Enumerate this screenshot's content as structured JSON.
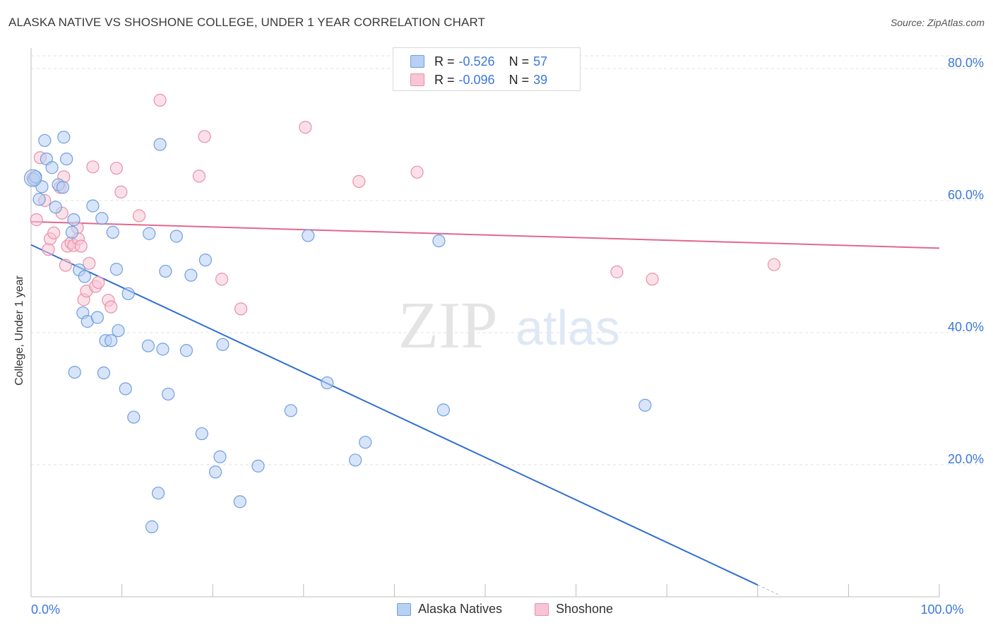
{
  "header": {
    "title": "ALASKA NATIVE VS SHOSHONE COLLEGE, UNDER 1 YEAR CORRELATION CHART",
    "source": "Source: ZipAtlas.com"
  },
  "watermark": {
    "zip": "ZIP",
    "atlas": "atlas"
  },
  "legend": {
    "r_label": "R =",
    "n_label": "N =",
    "rows": [
      {
        "r": "-0.526",
        "n": "57"
      },
      {
        "r": "-0.096",
        "n": "39"
      }
    ]
  },
  "bottom_legend": [
    {
      "label": "Alaska Natives"
    },
    {
      "label": "Shoshone"
    }
  ],
  "colors": {
    "blue_fill": "#b8d0f2",
    "blue_stroke": "#6f9fe0",
    "blue_line": "#2f6fce",
    "pink_fill": "#f7c6d5",
    "pink_stroke": "#e890ac",
    "pink_line": "#e06890",
    "tick_label": "#3b78d8",
    "grid": "#e2e2e2"
  },
  "chart_data": {
    "type": "scatter",
    "title": "ALASKA NATIVE VS SHOSHONE COLLEGE, UNDER 1 YEAR CORRELATION CHART",
    "xlabel": "",
    "ylabel": "College, Under 1 year",
    "xlim": [
      0,
      100
    ],
    "ylim": [
      0,
      80
    ],
    "x_tick_labels": [
      {
        "value": 0,
        "label": "0.0%"
      },
      {
        "value": 100,
        "label": "100.0%"
      }
    ],
    "x_minor_ticks": [
      0,
      10,
      20,
      30,
      40,
      50,
      60,
      70,
      80,
      90,
      100
    ],
    "y_ticks": [
      {
        "value": 20,
        "label": "20.0%"
      },
      {
        "value": 40,
        "label": "40.0%"
      },
      {
        "value": 60,
        "label": "60.0%"
      },
      {
        "value": 80,
        "label": "80.0%"
      }
    ],
    "series": [
      {
        "name": "Alaska Natives",
        "color": "blue",
        "r": -0.526,
        "n": 57,
        "trend": {
          "x0": 0,
          "y0": 53.3,
          "x1": 80,
          "y1": 1.8,
          "dash_to_x": 82.5
        },
        "points": [
          [
            0.3,
            63.2
          ],
          [
            0.5,
            63.6
          ],
          [
            0.9,
            60.2
          ],
          [
            1.2,
            62.1
          ],
          [
            1.5,
            69.1
          ],
          [
            1.7,
            66.3
          ],
          [
            2.3,
            65.0
          ],
          [
            2.7,
            59.0
          ],
          [
            3.0,
            62.4
          ],
          [
            3.5,
            62.0
          ],
          [
            3.6,
            69.6
          ],
          [
            3.9,
            66.3
          ],
          [
            4.5,
            55.2
          ],
          [
            4.7,
            57.1
          ],
          [
            5.3,
            49.5
          ],
          [
            5.7,
            43.0
          ],
          [
            5.9,
            48.5
          ],
          [
            6.2,
            41.7
          ],
          [
            6.8,
            59.2
          ],
          [
            7.3,
            42.3
          ],
          [
            7.8,
            57.3
          ],
          [
            8.2,
            38.8
          ],
          [
            8.8,
            38.8
          ],
          [
            9.0,
            55.2
          ],
          [
            9.4,
            49.6
          ],
          [
            9.6,
            40.3
          ],
          [
            10.7,
            45.9
          ],
          [
            10.4,
            31.5
          ],
          [
            11.3,
            27.2
          ],
          [
            12.9,
            38.0
          ],
          [
            13.0,
            55.0
          ],
          [
            14.2,
            68.5
          ],
          [
            14.5,
            37.5
          ],
          [
            14.8,
            49.3
          ],
          [
            15.1,
            30.7
          ],
          [
            16.0,
            54.6
          ],
          [
            17.1,
            37.3
          ],
          [
            17.6,
            48.7
          ],
          [
            18.8,
            24.7
          ],
          [
            19.2,
            51.0
          ],
          [
            20.3,
            18.9
          ],
          [
            20.8,
            21.2
          ],
          [
            21.1,
            38.2
          ],
          [
            23.0,
            14.4
          ],
          [
            25.0,
            19.8
          ],
          [
            28.6,
            28.2
          ],
          [
            30.5,
            54.7
          ],
          [
            32.6,
            32.4
          ],
          [
            35.7,
            20.7
          ],
          [
            36.8,
            23.4
          ],
          [
            44.9,
            53.9
          ],
          [
            45.4,
            28.3
          ],
          [
            67.6,
            29.0
          ],
          [
            14.0,
            15.7
          ],
          [
            13.3,
            10.6
          ],
          [
            4.8,
            34.0
          ],
          [
            8.0,
            33.9
          ]
        ]
      },
      {
        "name": "Shoshone",
        "color": "pink",
        "r": -0.096,
        "n": 39,
        "trend": {
          "x0": 0,
          "y0": 56.8,
          "x1": 100,
          "y1": 52.8
        },
        "points": [
          [
            0.2,
            63.4
          ],
          [
            0.6,
            57.1
          ],
          [
            1.0,
            66.5
          ],
          [
            1.5,
            60.0
          ],
          [
            1.9,
            52.6
          ],
          [
            2.1,
            54.2
          ],
          [
            2.5,
            55.1
          ],
          [
            3.2,
            62.0
          ],
          [
            3.4,
            58.1
          ],
          [
            3.6,
            63.6
          ],
          [
            3.8,
            50.2
          ],
          [
            4.0,
            53.1
          ],
          [
            4.4,
            53.6
          ],
          [
            4.7,
            53.2
          ],
          [
            5.1,
            55.9
          ],
          [
            5.2,
            54.2
          ],
          [
            5.5,
            53.1
          ],
          [
            5.8,
            45.0
          ],
          [
            6.1,
            46.3
          ],
          [
            6.4,
            50.5
          ],
          [
            6.8,
            65.1
          ],
          [
            7.1,
            47.0
          ],
          [
            7.4,
            47.6
          ],
          [
            8.5,
            44.9
          ],
          [
            8.8,
            43.9
          ],
          [
            9.4,
            64.9
          ],
          [
            9.9,
            61.3
          ],
          [
            11.9,
            57.7
          ],
          [
            14.2,
            75.2
          ],
          [
            18.5,
            63.7
          ],
          [
            19.1,
            69.7
          ],
          [
            21.0,
            48.1
          ],
          [
            23.1,
            43.6
          ],
          [
            30.2,
            71.1
          ],
          [
            36.1,
            62.9
          ],
          [
            42.5,
            64.3
          ],
          [
            64.5,
            49.2
          ],
          [
            68.4,
            48.1
          ],
          [
            81.8,
            50.3
          ]
        ]
      }
    ]
  }
}
